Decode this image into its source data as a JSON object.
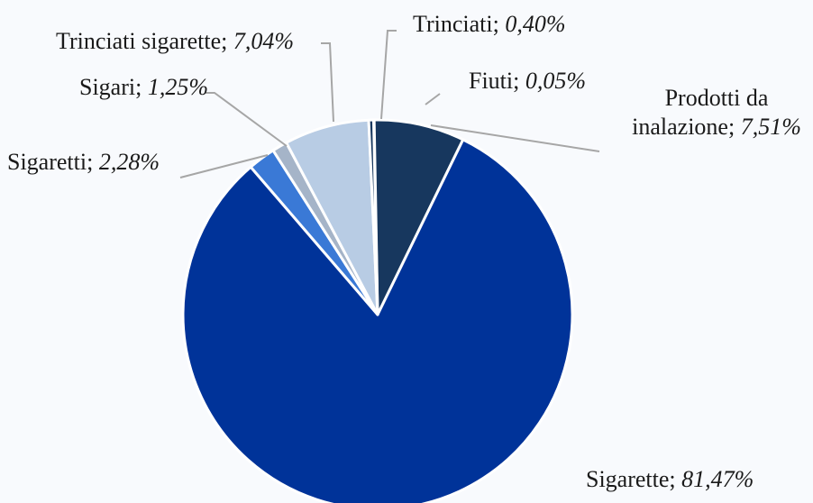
{
  "chart_data": {
    "type": "pie",
    "slices": [
      {
        "label": "Fiuti",
        "value": 0.05,
        "display": "0,05%",
        "color": "#17375e"
      },
      {
        "label": "Prodotti da inalazione",
        "label_lines": [
          "Prodotti da",
          "inalazione; "
        ],
        "value": 7.51,
        "display": "7,51%",
        "color": "#17375e"
      },
      {
        "label": "Sigarette",
        "value": 81.47,
        "display": "81,47%",
        "color": "#003399"
      },
      {
        "label": "Sigaretti",
        "value": 2.28,
        "display": "2,28%",
        "color": "#3a79d6"
      },
      {
        "label": "Sigari",
        "value": 1.25,
        "display": "1,25%",
        "color": "#a5b4c8"
      },
      {
        "label": "Trinciati sigarette",
        "value": 7.04,
        "display": "7,04%",
        "color": "#b8cce4"
      },
      {
        "label": "Trinciati",
        "value": 0.4,
        "display": "0,40%",
        "color": "#17375e"
      }
    ],
    "legend": "none"
  }
}
